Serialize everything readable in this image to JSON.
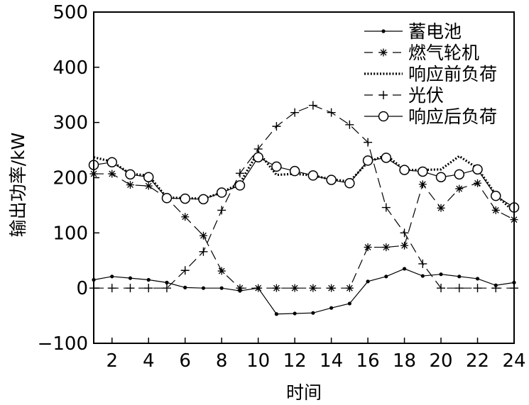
{
  "chart_data": {
    "type": "line",
    "xlabel": "时间",
    "ylabel": "输出功率/kW",
    "xlim": [
      1,
      24
    ],
    "ylim": [
      -100,
      500
    ],
    "x_ticks": [
      2,
      4,
      6,
      8,
      10,
      12,
      14,
      16,
      18,
      20,
      22,
      24
    ],
    "y_ticks": [
      -100,
      0,
      100,
      200,
      300,
      400,
      500
    ],
    "y_tick_labels": [
      "−100",
      "0",
      "100",
      "200",
      "300",
      "400",
      "500"
    ],
    "grid": false,
    "legend_position": "top-right",
    "x": [
      1,
      2,
      3,
      4,
      5,
      6,
      7,
      8,
      9,
      10,
      11,
      12,
      13,
      14,
      15,
      16,
      17,
      18,
      19,
      20,
      21,
      22,
      23,
      24
    ],
    "series": [
      {
        "name": "蓄电池",
        "line_style": "solid",
        "marker": "dot",
        "values": [
          15,
          21,
          18,
          15,
          10,
          1,
          0,
          0,
          -5,
          0,
          -47,
          -46,
          -45,
          -36,
          -28,
          12,
          21,
          35,
          22,
          25,
          21,
          17,
          5,
          10
        ]
      },
      {
        "name": "燃气轮机",
        "line_style": "dashed",
        "marker": "asterisk",
        "values": [
          207,
          207,
          187,
          185,
          163,
          129,
          95,
          31,
          0,
          0,
          0,
          0,
          0,
          0,
          0,
          74,
          74,
          77,
          188,
          145,
          180,
          190,
          141,
          124
        ]
      },
      {
        "name": "响应前负荷",
        "line_style": "dotted",
        "marker": "none",
        "values": [
          237,
          229,
          207,
          204,
          164,
          163,
          162,
          173,
          190,
          247,
          205,
          207,
          204,
          197,
          193,
          228,
          241,
          214,
          214,
          215,
          239,
          217,
          169,
          138
        ]
      },
      {
        "name": "光伏",
        "line_style": "dashed",
        "marker": "plus",
        "values": [
          0,
          0,
          0,
          0,
          0,
          32,
          66,
          141,
          208,
          252,
          293,
          318,
          331,
          318,
          296,
          264,
          146,
          100,
          44,
          0,
          0,
          0,
          0,
          0
        ]
      },
      {
        "name": "响应后负荷",
        "line_style": "solid",
        "marker": "circle",
        "values": [
          223,
          228,
          206,
          201,
          163,
          162,
          161,
          173,
          186,
          237,
          220,
          212,
          204,
          196,
          190,
          231,
          236,
          214,
          211,
          201,
          206,
          215,
          167,
          146
        ]
      }
    ]
  }
}
